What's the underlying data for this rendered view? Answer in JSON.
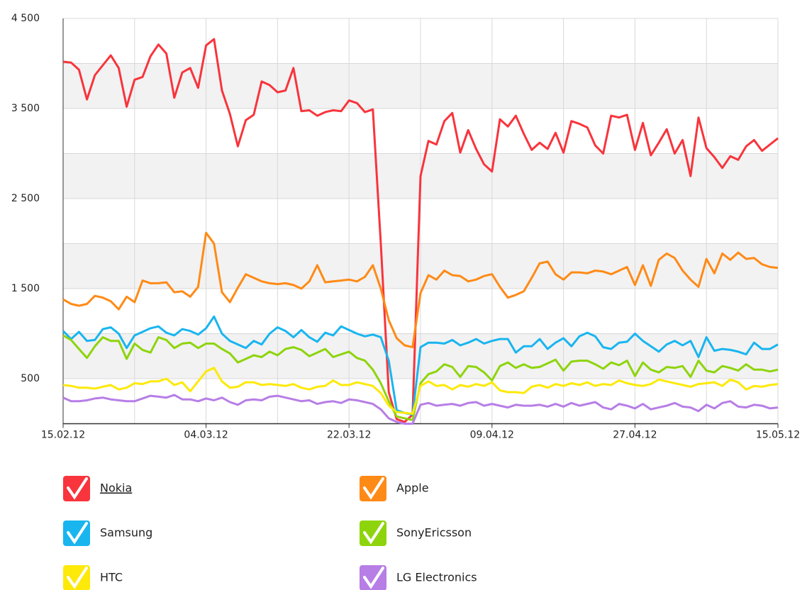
{
  "chart_data": {
    "type": "line",
    "x": [
      "15.02.12",
      "16.02.12",
      "17.02.12",
      "18.02.12",
      "19.02.12",
      "20.02.12",
      "21.02.12",
      "22.02.12",
      "23.02.12",
      "24.02.12",
      "25.02.12",
      "26.02.12",
      "27.02.12",
      "28.02.12",
      "29.02.12",
      "01.03.12",
      "02.03.12",
      "03.03.12",
      "04.03.12",
      "05.03.12",
      "06.03.12",
      "07.03.12",
      "08.03.12",
      "09.03.12",
      "10.03.12",
      "11.03.12",
      "12.03.12",
      "13.03.12",
      "14.03.12",
      "15.03.12",
      "16.03.12",
      "17.03.12",
      "18.03.12",
      "19.03.12",
      "20.03.12",
      "21.03.12",
      "22.03.12",
      "23.03.12",
      "24.03.12",
      "25.03.12",
      "26.03.12",
      "27.03.12",
      "28.03.12",
      "29.03.12",
      "30.03.12",
      "31.03.12",
      "01.04.12",
      "02.04.12",
      "03.04.12",
      "04.04.12",
      "05.04.12",
      "06.04.12",
      "07.04.12",
      "08.04.12",
      "09.04.12",
      "10.04.12",
      "11.04.12",
      "12.04.12",
      "13.04.12",
      "14.04.12",
      "15.04.12",
      "16.04.12",
      "17.04.12",
      "18.04.12",
      "19.04.12",
      "20.04.12",
      "21.04.12",
      "22.04.12",
      "23.04.12",
      "24.04.12",
      "25.04.12",
      "26.04.12",
      "27.04.12",
      "28.04.12",
      "29.04.12",
      "30.04.12",
      "01.05.12",
      "02.05.12",
      "03.05.12",
      "04.05.12",
      "05.05.12",
      "06.05.12",
      "07.05.12",
      "08.05.12",
      "09.05.12",
      "10.05.12",
      "11.05.12",
      "12.05.12",
      "13.05.12",
      "14.05.12",
      "15.05.12"
    ],
    "xticks": [
      "15.02.12",
      "04.03.12",
      "22.03.12",
      "09.04.12",
      "27.04.12",
      "15.05.12"
    ],
    "ylim": [
      0,
      4500
    ],
    "yticks": [
      {
        "value": 500,
        "label": "500"
      },
      {
        "value": 1500,
        "label": "1 500"
      },
      {
        "value": 2500,
        "label": "2 500"
      },
      {
        "value": 3500,
        "label": "3 500"
      },
      {
        "value": 4500,
        "label": "4 500"
      }
    ],
    "grid": true,
    "series": [
      {
        "name": "Nokia",
        "color": "#f8343c",
        "values": [
          4020,
          4010,
          3930,
          3600,
          3870,
          3980,
          4090,
          3950,
          3520,
          3820,
          3850,
          4080,
          4210,
          4110,
          3620,
          3900,
          3950,
          3730,
          4200,
          4270,
          3700,
          3440,
          3080,
          3370,
          3430,
          3800,
          3760,
          3680,
          3700,
          3950,
          3470,
          3480,
          3420,
          3460,
          3480,
          3470,
          3590,
          3560,
          3460,
          3490,
          2000,
          350,
          50,
          20,
          100,
          2750,
          3140,
          3100,
          3360,
          3450,
          3010,
          3260,
          3050,
          2880,
          2800,
          3380,
          3300,
          3420,
          3220,
          3040,
          3120,
          3050,
          3230,
          3010,
          3360,
          3330,
          3290,
          3090,
          3000,
          3420,
          3400,
          3430,
          3040,
          3340,
          2980,
          3120,
          3270,
          3000,
          3150,
          2750,
          3400,
          3060,
          2960,
          2840,
          2970,
          2930,
          3080,
          3150,
          3030,
          3100,
          3170
        ]
      },
      {
        "name": "Apple",
        "color": "#ff8a16",
        "values": [
          1380,
          1330,
          1310,
          1330,
          1420,
          1400,
          1360,
          1270,
          1410,
          1350,
          1590,
          1560,
          1560,
          1570,
          1460,
          1470,
          1410,
          1520,
          2120,
          2000,
          1460,
          1350,
          1510,
          1660,
          1620,
          1580,
          1560,
          1550,
          1560,
          1540,
          1500,
          1580,
          1760,
          1570,
          1580,
          1590,
          1600,
          1580,
          1630,
          1760,
          1500,
          1150,
          950,
          870,
          850,
          1450,
          1650,
          1600,
          1700,
          1650,
          1640,
          1580,
          1600,
          1640,
          1660,
          1520,
          1400,
          1430,
          1470,
          1620,
          1780,
          1800,
          1660,
          1600,
          1680,
          1680,
          1670,
          1700,
          1690,
          1660,
          1700,
          1740,
          1540,
          1760,
          1530,
          1820,
          1890,
          1840,
          1700,
          1600,
          1520,
          1830,
          1670,
          1890,
          1820,
          1900,
          1830,
          1840,
          1770,
          1740,
          1730
        ]
      },
      {
        "name": "Samsung",
        "color": "#19b5ef",
        "values": [
          1030,
          940,
          1020,
          920,
          930,
          1050,
          1070,
          1000,
          840,
          980,
          1020,
          1060,
          1080,
          1010,
          980,
          1050,
          1030,
          990,
          1060,
          1190,
          1000,
          920,
          880,
          840,
          920,
          880,
          1000,
          1070,
          1030,
          960,
          1040,
          960,
          910,
          1010,
          980,
          1080,
          1040,
          1000,
          970,
          990,
          960,
          700,
          150,
          120,
          100,
          850,
          900,
          900,
          890,
          930,
          870,
          900,
          940,
          890,
          920,
          940,
          940,
          790,
          860,
          860,
          940,
          830,
          900,
          950,
          860,
          970,
          1010,
          970,
          850,
          830,
          900,
          910,
          1000,
          920,
          860,
          800,
          880,
          920,
          870,
          920,
          740,
          960,
          810,
          830,
          820,
          800,
          770,
          900,
          830,
          830,
          880
        ]
      },
      {
        "name": "SonyEricsson",
        "color": "#8ed40d",
        "values": [
          980,
          930,
          830,
          730,
          860,
          960,
          920,
          920,
          720,
          890,
          820,
          790,
          960,
          930,
          840,
          890,
          900,
          840,
          890,
          890,
          830,
          780,
          680,
          720,
          760,
          740,
          800,
          760,
          830,
          850,
          820,
          750,
          790,
          830,
          740,
          770,
          800,
          730,
          700,
          600,
          450,
          250,
          80,
          60,
          40,
          450,
          550,
          580,
          660,
          630,
          520,
          640,
          630,
          570,
          480,
          640,
          680,
          620,
          660,
          620,
          630,
          670,
          710,
          590,
          690,
          700,
          700,
          660,
          610,
          680,
          650,
          700,
          530,
          680,
          600,
          570,
          630,
          620,
          640,
          520,
          700,
          590,
          570,
          640,
          620,
          590,
          660,
          600,
          600,
          580,
          600
        ]
      },
      {
        "name": "HTC",
        "color": "#fde90a",
        "values": [
          430,
          420,
          400,
          400,
          390,
          410,
          430,
          380,
          400,
          450,
          440,
          470,
          470,
          500,
          430,
          460,
          360,
          470,
          580,
          620,
          470,
          400,
          410,
          460,
          460,
          430,
          440,
          430,
          420,
          440,
          400,
          380,
          410,
          420,
          480,
          430,
          430,
          460,
          440,
          420,
          340,
          200,
          130,
          120,
          110,
          420,
          470,
          420,
          430,
          380,
          430,
          410,
          440,
          420,
          460,
          370,
          350,
          350,
          340,
          410,
          430,
          400,
          440,
          420,
          450,
          430,
          460,
          420,
          440,
          430,
          480,
          450,
          430,
          420,
          440,
          490,
          470,
          450,
          430,
          410,
          440,
          450,
          460,
          420,
          490,
          460,
          380,
          420,
          410,
          430,
          440
        ]
      },
      {
        "name": "LG Electronics",
        "color": "#b77ee6",
        "values": [
          290,
          250,
          250,
          260,
          280,
          290,
          270,
          260,
          250,
          250,
          280,
          310,
          300,
          290,
          320,
          270,
          270,
          250,
          280,
          260,
          290,
          240,
          210,
          260,
          270,
          260,
          300,
          310,
          290,
          270,
          250,
          260,
          220,
          240,
          250,
          230,
          270,
          260,
          240,
          220,
          160,
          60,
          20,
          0,
          0,
          210,
          230,
          200,
          210,
          220,
          200,
          230,
          240,
          200,
          220,
          200,
          180,
          210,
          200,
          200,
          210,
          190,
          220,
          190,
          230,
          200,
          220,
          240,
          180,
          160,
          220,
          200,
          170,
          220,
          160,
          180,
          200,
          230,
          190,
          180,
          140,
          210,
          170,
          230,
          250,
          190,
          180,
          210,
          200,
          170,
          180
        ]
      }
    ]
  }
}
